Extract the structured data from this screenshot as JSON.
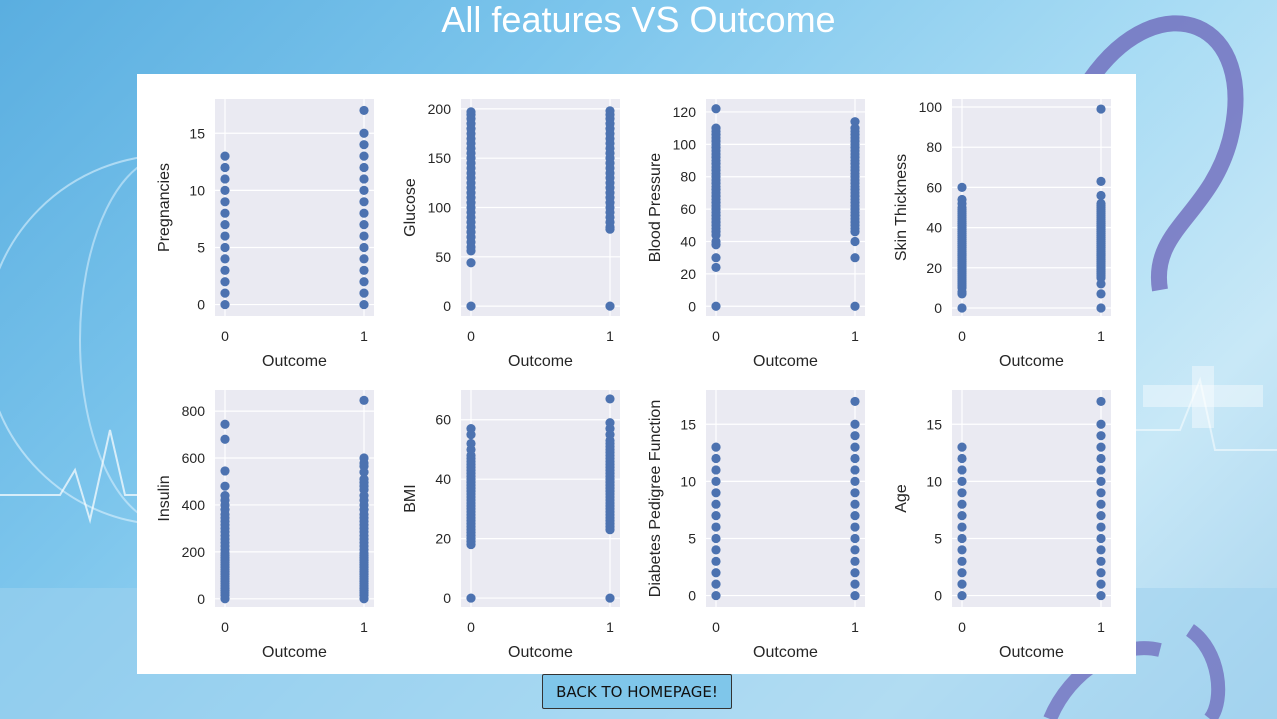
{
  "page": {
    "title": "All features VS Outcome",
    "back_button": "BACK TO HOMEPAGE!"
  },
  "colors": {
    "plot_bg": "#eaeaf2",
    "grid": "#ffffff",
    "point": "#4c72b0",
    "text": "#262626"
  },
  "chart_data": [
    {
      "type": "scatter",
      "xlabel": "Outcome",
      "ylabel": "Pregnancies",
      "xticks": [
        0,
        1
      ],
      "yticks": [
        0,
        5,
        10,
        15
      ],
      "ylim": [
        -1,
        18
      ],
      "series": [
        {
          "x": 0,
          "values": [
            0,
            1,
            2,
            3,
            4,
            5,
            6,
            7,
            8,
            9,
            10,
            11,
            12,
            13
          ]
        },
        {
          "x": 1,
          "values": [
            0,
            1,
            2,
            3,
            4,
            5,
            6,
            7,
            8,
            9,
            10,
            11,
            12,
            13,
            14,
            15,
            17
          ]
        }
      ]
    },
    {
      "type": "scatter",
      "xlabel": "Outcome",
      "ylabel": "Glucose",
      "xticks": [
        0,
        1
      ],
      "yticks": [
        0,
        50,
        100,
        150,
        200
      ],
      "ylim": [
        -10,
        210
      ],
      "series": [
        {
          "x": 0,
          "values": [
            0,
            44,
            56,
            60,
            65,
            70,
            75,
            80,
            85,
            90,
            95,
            100,
            105,
            110,
            115,
            120,
            125,
            130,
            135,
            140,
            145,
            150,
            155,
            160,
            165,
            170,
            175,
            180,
            185,
            190,
            194,
            197
          ]
        },
        {
          "x": 1,
          "values": [
            0,
            78,
            80,
            85,
            90,
            95,
            100,
            105,
            110,
            115,
            120,
            125,
            130,
            135,
            140,
            145,
            150,
            155,
            160,
            165,
            170,
            175,
            180,
            185,
            190,
            194,
            198
          ]
        }
      ]
    },
    {
      "type": "scatter",
      "xlabel": "Outcome",
      "ylabel": "Blood Pressure",
      "xticks": [
        0,
        1
      ],
      "yticks": [
        0,
        20,
        40,
        60,
        80,
        100,
        120
      ],
      "ylim": [
        -6,
        128
      ],
      "series": [
        {
          "x": 0,
          "values": [
            0,
            24,
            30,
            38,
            40,
            44,
            46,
            48,
            50,
            52,
            54,
            56,
            58,
            60,
            62,
            64,
            66,
            68,
            70,
            72,
            74,
            76,
            78,
            80,
            82,
            84,
            86,
            88,
            90,
            92,
            94,
            96,
            98,
            100,
            102,
            104,
            106,
            108,
            110,
            122
          ]
        },
        {
          "x": 1,
          "values": [
            0,
            30,
            40,
            46,
            48,
            50,
            52,
            54,
            56,
            58,
            60,
            62,
            64,
            66,
            68,
            70,
            72,
            74,
            76,
            78,
            80,
            82,
            84,
            86,
            88,
            90,
            92,
            94,
            96,
            98,
            100,
            102,
            104,
            106,
            108,
            110,
            114
          ]
        }
      ]
    },
    {
      "type": "scatter",
      "xlabel": "Outcome",
      "ylabel": "Skin Thickness",
      "xticks": [
        0,
        1
      ],
      "yticks": [
        0,
        20,
        40,
        60,
        80,
        100
      ],
      "ylim": [
        -4,
        104
      ],
      "series": [
        {
          "x": 0,
          "values": [
            0,
            7,
            8,
            10,
            11,
            12,
            13,
            14,
            15,
            16,
            17,
            18,
            19,
            20,
            21,
            22,
            23,
            24,
            25,
            26,
            27,
            28,
            29,
            30,
            31,
            32,
            33,
            34,
            35,
            36,
            37,
            38,
            39,
            40,
            41,
            42,
            43,
            44,
            45,
            46,
            47,
            48,
            49,
            50,
            52,
            54,
            60
          ]
        },
        {
          "x": 1,
          "values": [
            0,
            7,
            12,
            15,
            16,
            17,
            18,
            19,
            20,
            21,
            22,
            23,
            24,
            25,
            26,
            27,
            28,
            29,
            30,
            31,
            32,
            33,
            34,
            35,
            36,
            37,
            38,
            39,
            40,
            41,
            42,
            43,
            44,
            45,
            46,
            47,
            48,
            49,
            50,
            51,
            52,
            56,
            63,
            99
          ]
        }
      ]
    },
    {
      "type": "scatter",
      "xlabel": "Outcome",
      "ylabel": "Insulin",
      "xticks": [
        0,
        1
      ],
      "yticks": [
        0,
        200,
        400,
        600,
        800
      ],
      "ylim": [
        -35,
        890
      ],
      "series": [
        {
          "x": 0,
          "values": [
            0,
            15,
            25,
            35,
            45,
            55,
            65,
            75,
            85,
            95,
            105,
            115,
            125,
            135,
            145,
            155,
            165,
            175,
            185,
            195,
            210,
            225,
            240,
            255,
            270,
            285,
            300,
            315,
            330,
            345,
            360,
            380,
            400,
            420,
            440,
            480,
            545,
            680,
            744
          ]
        },
        {
          "x": 1,
          "values": [
            0,
            15,
            25,
            35,
            45,
            55,
            65,
            75,
            85,
            95,
            105,
            115,
            125,
            135,
            145,
            155,
            165,
            175,
            185,
            195,
            210,
            225,
            240,
            255,
            270,
            285,
            300,
            315,
            330,
            345,
            360,
            380,
            400,
            420,
            440,
            465,
            480,
            495,
            510,
            540,
            565,
            579,
            600,
            846
          ]
        }
      ]
    },
    {
      "type": "scatter",
      "xlabel": "Outcome",
      "ylabel": "BMI",
      "xticks": [
        0,
        1
      ],
      "yticks": [
        0,
        20,
        40,
        60
      ],
      "ylim": [
        -3,
        70
      ],
      "series": [
        {
          "x": 0,
          "values": [
            0,
            18,
            19,
            20,
            21,
            22,
            23,
            24,
            25,
            26,
            27,
            28,
            29,
            30,
            31,
            32,
            33,
            34,
            35,
            36,
            37,
            38,
            39,
            40,
            41,
            42,
            43,
            44,
            45,
            46,
            47,
            48,
            50,
            52,
            55,
            57
          ]
        },
        {
          "x": 1,
          "values": [
            0,
            23,
            24,
            25,
            26,
            27,
            28,
            29,
            30,
            31,
            32,
            33,
            34,
            35,
            36,
            37,
            38,
            39,
            40,
            41,
            42,
            43,
            44,
            45,
            46,
            47,
            48,
            49,
            50,
            51,
            52,
            53,
            55,
            57,
            59,
            67
          ]
        }
      ]
    },
    {
      "type": "scatter",
      "xlabel": "Outcome",
      "ylabel": "Diabetes Pedigree Function",
      "xticks": [
        0,
        1
      ],
      "yticks": [
        0,
        5,
        10,
        15
      ],
      "ylim": [
        -1,
        18
      ],
      "series": [
        {
          "x": 0,
          "values": [
            0,
            1,
            2,
            3,
            4,
            5,
            6,
            7,
            8,
            9,
            10,
            11,
            12,
            13
          ]
        },
        {
          "x": 1,
          "values": [
            0,
            1,
            2,
            3,
            4,
            5,
            6,
            7,
            8,
            9,
            10,
            11,
            12,
            13,
            14,
            15,
            17
          ]
        }
      ]
    },
    {
      "type": "scatter",
      "xlabel": "Outcome",
      "ylabel": "Age",
      "xticks": [
        0,
        1
      ],
      "yticks": [
        0,
        5,
        10,
        15
      ],
      "ylim": [
        -1,
        18
      ],
      "series": [
        {
          "x": 0,
          "values": [
            0,
            1,
            2,
            3,
            4,
            5,
            6,
            7,
            8,
            9,
            10,
            11,
            12,
            13
          ]
        },
        {
          "x": 1,
          "values": [
            0,
            1,
            2,
            3,
            4,
            5,
            6,
            7,
            8,
            9,
            10,
            11,
            12,
            13,
            14,
            15,
            17
          ]
        }
      ]
    }
  ]
}
